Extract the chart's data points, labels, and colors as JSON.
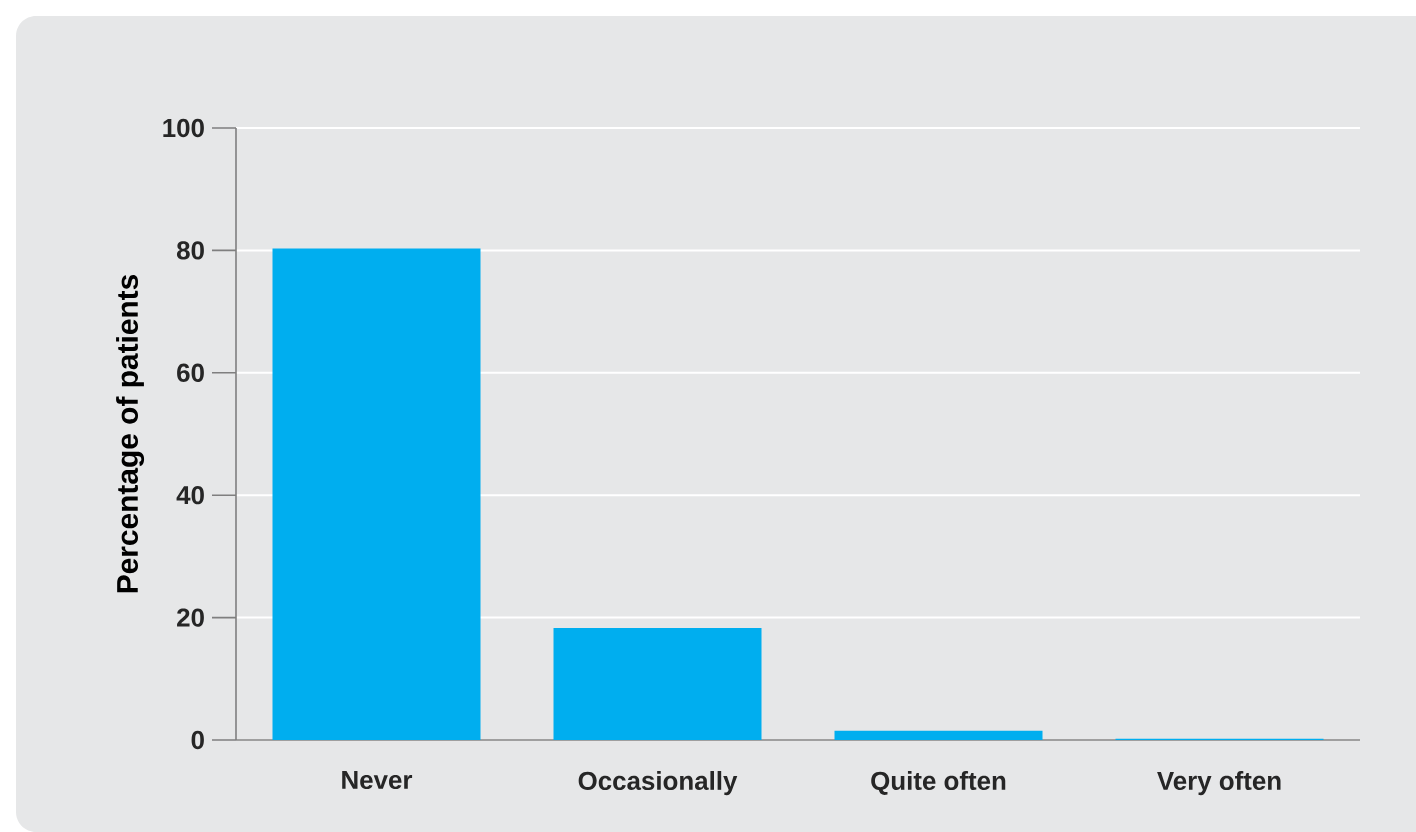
{
  "chart_data": {
    "type": "bar",
    "ylabel": "Percentage of patients",
    "categories": [
      "Never",
      "Occasionally",
      "Quite often",
      "Very often"
    ],
    "values": [
      80.3,
      18.3,
      1.5,
      0.2
    ],
    "color": "#00aeef",
    "ylim": [
      0,
      100
    ],
    "yticks": [
      0,
      20,
      40,
      60,
      80,
      100
    ],
    "grid": "y"
  }
}
